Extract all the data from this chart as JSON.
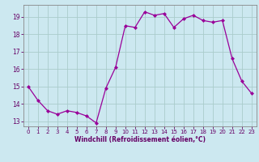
{
  "x": [
    0,
    1,
    2,
    3,
    4,
    5,
    6,
    7,
    8,
    9,
    10,
    11,
    12,
    13,
    14,
    15,
    16,
    17,
    18,
    19,
    20,
    21,
    22,
    23
  ],
  "y": [
    15.0,
    14.2,
    13.6,
    13.4,
    13.6,
    13.5,
    13.3,
    12.9,
    14.9,
    16.1,
    18.5,
    18.4,
    19.3,
    19.1,
    19.2,
    18.4,
    18.9,
    19.1,
    18.8,
    18.7,
    18.8,
    16.6,
    15.3,
    14.6
  ],
  "line_color": "#990099",
  "marker": "D",
  "marker_size": 2,
  "bg_color": "#cce8f0",
  "grid_color": "#aacccc",
  "xlabel": "Windchill (Refroidissement éolien,°C)",
  "xlabel_color": "#660066",
  "tick_color": "#660066",
  "ylim": [
    12.7,
    19.7
  ],
  "yticks": [
    13,
    14,
    15,
    16,
    17,
    18,
    19
  ],
  "xticks": [
    0,
    1,
    2,
    3,
    4,
    5,
    6,
    7,
    8,
    9,
    10,
    11,
    12,
    13,
    14,
    15,
    16,
    17,
    18,
    19,
    20,
    21,
    22,
    23
  ],
  "spine_color": "#888888",
  "figsize": [
    3.2,
    2.0
  ],
  "dpi": 100
}
